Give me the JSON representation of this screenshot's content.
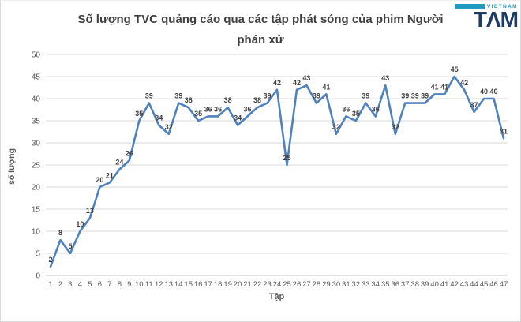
{
  "logo": {
    "top_text": "VIETNAM",
    "brand": "TAM",
    "brand_stylized": "TΛM",
    "teal": "#2399c3",
    "navy": "#1f3b63"
  },
  "chart_data": {
    "type": "line",
    "title": "Số lượng TVC quảng cáo qua các tập phát sóng của phim Người phán xử",
    "xlabel": "Tập",
    "ylabel": "số lượng",
    "categories": [
      1,
      2,
      3,
      4,
      5,
      6,
      7,
      8,
      9,
      10,
      11,
      12,
      13,
      14,
      15,
      16,
      17,
      18,
      19,
      20,
      21,
      22,
      23,
      24,
      25,
      26,
      27,
      28,
      29,
      30,
      31,
      32,
      33,
      34,
      35,
      36,
      37,
      38,
      39,
      40,
      41,
      42,
      43,
      44,
      45,
      46,
      47
    ],
    "values": [
      2,
      8,
      5,
      10,
      13,
      20,
      21,
      24,
      26,
      35,
      39,
      34,
      32,
      39,
      38,
      35,
      36,
      36,
      38,
      34,
      36,
      38,
      39,
      42,
      25,
      42,
      43,
      39,
      41,
      32,
      36,
      35,
      39,
      36,
      43,
      32,
      39,
      39,
      39,
      41,
      41,
      45,
      42,
      37,
      40,
      40,
      31
    ],
    "ylim": [
      0,
      50
    ],
    "yticks": [
      0,
      5,
      10,
      15,
      20,
      25,
      30,
      35,
      40,
      45,
      50
    ],
    "grid": true,
    "legend": "none",
    "data_labels": true,
    "line_color": "#4f81bd",
    "label_color": "#404040",
    "axis_text_color": "#595959",
    "gridline_color": "#d9d9d9",
    "axis_line_color": "#c3c3c3"
  }
}
